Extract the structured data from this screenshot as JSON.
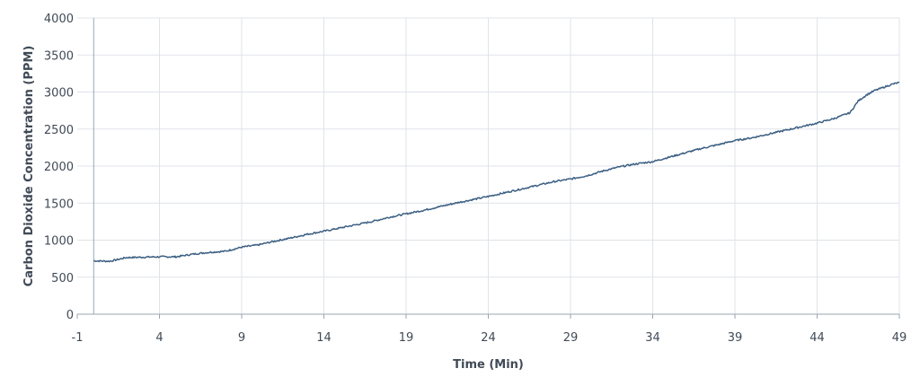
{
  "chart_data": {
    "type": "line",
    "title": "",
    "xlabel": "Time (Min)",
    "ylabel": "Carbon Dioxide Concentration (PPM)",
    "xlim": [
      -1,
      49
    ],
    "ylim": [
      0,
      4000
    ],
    "x_ticks": [
      "-1",
      "4",
      "9",
      "14",
      "19",
      "24",
      "29",
      "34",
      "39",
      "44",
      "49"
    ],
    "y_ticks": [
      "0",
      "500",
      "1000",
      "1500",
      "2000",
      "2500",
      "3000",
      "3500",
      "4000"
    ],
    "grid": true,
    "legend": "none",
    "series_color": "#3b5f82",
    "series": [
      {
        "x": [
          0,
          1,
          2,
          3,
          4,
          5,
          6,
          7,
          8,
          9,
          10,
          11,
          12,
          13,
          14,
          15,
          16,
          17,
          18,
          19,
          20,
          21,
          22,
          23,
          24,
          25,
          26,
          27,
          28,
          29,
          30,
          31,
          32,
          33,
          34,
          35,
          36,
          37,
          38,
          39,
          40,
          41,
          42,
          43,
          44,
          45,
          45.5,
          46,
          46.5,
          47,
          47.5,
          48,
          48.5,
          49
        ],
        "values": [
          720,
          715,
          765,
          770,
          775,
          775,
          810,
          835,
          850,
          905,
          935,
          985,
          1030,
          1080,
          1120,
          1165,
          1210,
          1255,
          1310,
          1355,
          1400,
          1450,
          1500,
          1545,
          1590,
          1640,
          1690,
          1740,
          1790,
          1825,
          1870,
          1935,
          1990,
          2030,
          2060,
          2120,
          2180,
          2240,
          2290,
          2345,
          2380,
          2430,
          2480,
          2530,
          2580,
          2640,
          2680,
          2720,
          2880,
          2960,
          3020,
          3060,
          3100,
          3130
        ]
      }
    ]
  }
}
